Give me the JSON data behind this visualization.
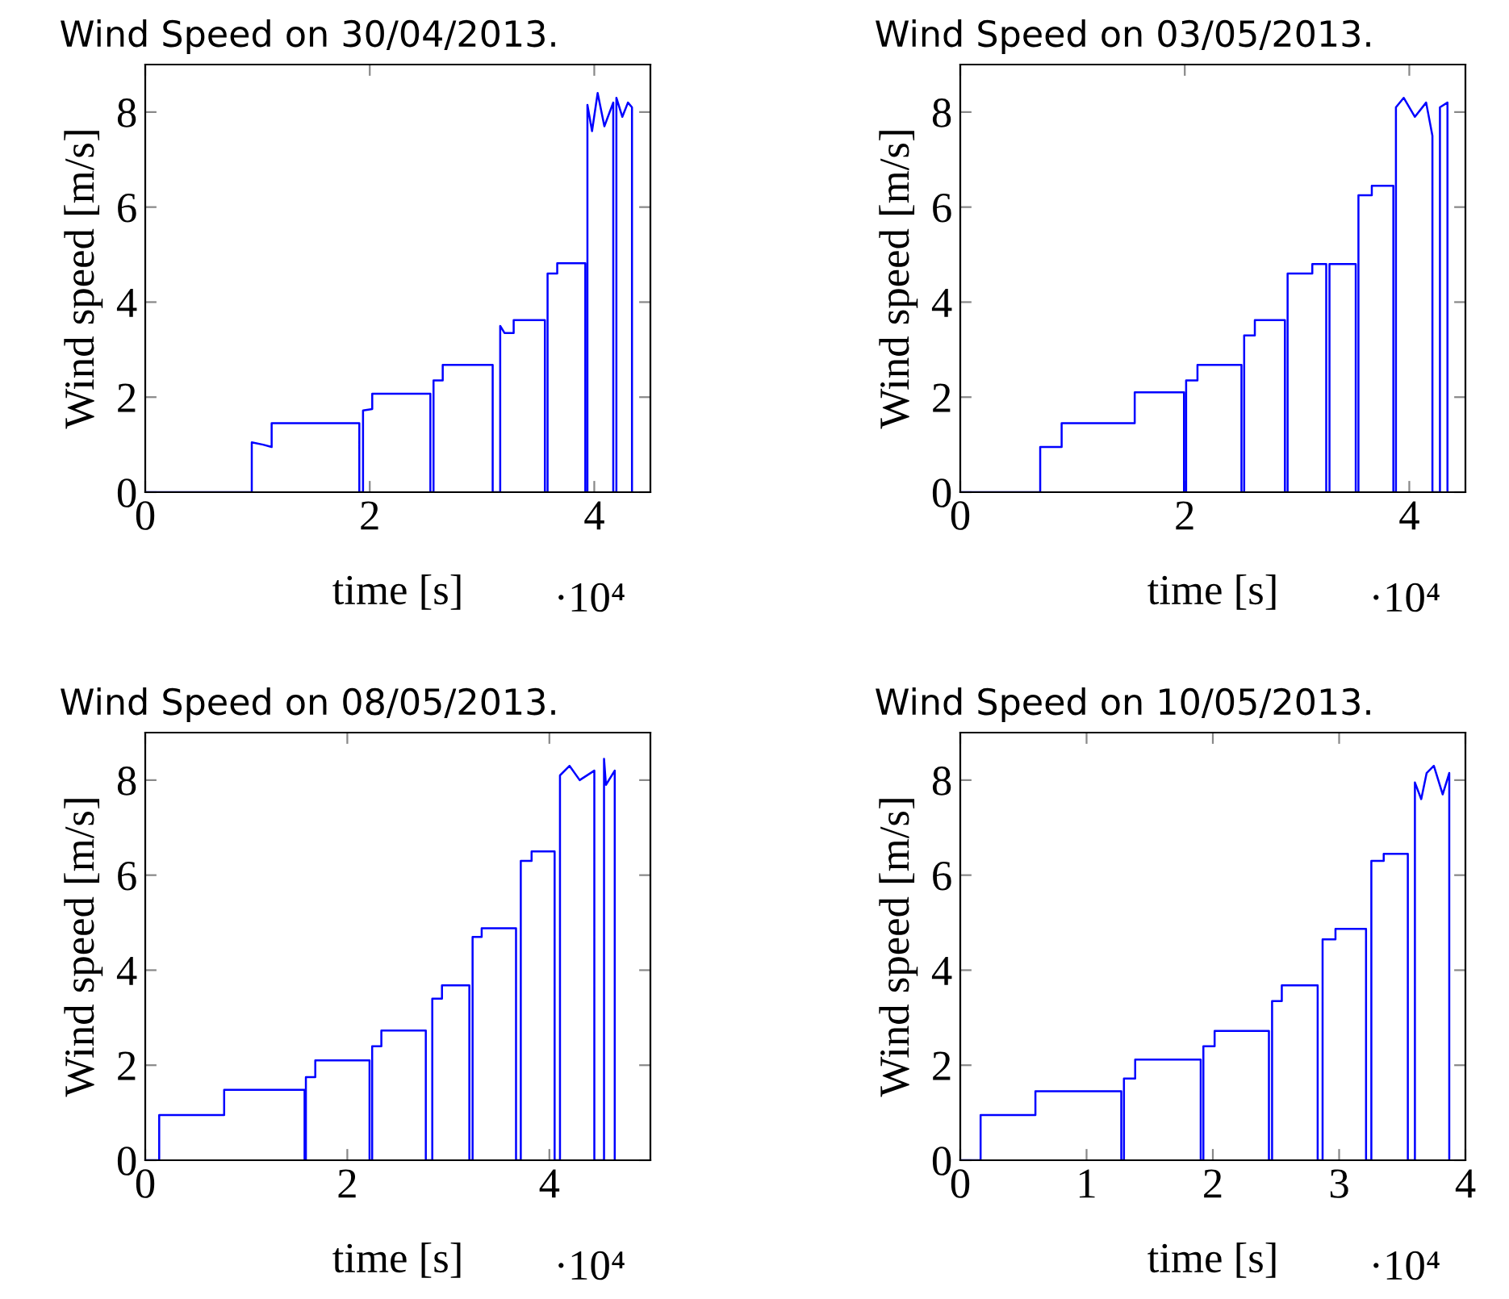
{
  "chart_data": [
    {
      "type": "line",
      "title": "Wind Speed on 30/04/2013.",
      "xlabel": "time [s]",
      "ylabel": "Wind speed [m/s]",
      "annotations": [
        "·10⁴"
      ],
      "xlim": [
        0,
        4.5
      ],
      "ylim": [
        0,
        9
      ],
      "xticks": [
        0,
        2,
        4
      ],
      "yticks": [
        0,
        2,
        4,
        6,
        8
      ],
      "marker": "none",
      "line_style": "solid",
      "series": [
        {
          "color": "#0000ff",
          "x": [
            0,
            0.949,
            0.949,
            1.05,
            1.126,
            1.126,
            1.907,
            1.907,
            1.94,
            1.94,
            2.022,
            2.022,
            2.54,
            2.54,
            2.568,
            2.568,
            2.65,
            2.65,
            3.095,
            3.095,
            3.162,
            3.162,
            3.2,
            3.282,
            3.282,
            3.56,
            3.56,
            3.584,
            3.584,
            3.67,
            3.67,
            3.92,
            3.92,
            3.939,
            3.939,
            3.98,
            4.03,
            4.09,
            4.169,
            4.169,
            4.197,
            4.197,
            4.25,
            4.3,
            4.336,
            4.336
          ],
          "values": [
            0,
            0,
            1.05,
            1.0,
            0.95,
            1.45,
            1.45,
            0,
            0,
            1.72,
            1.75,
            2.07,
            2.07,
            0,
            0,
            2.35,
            2.35,
            2.68,
            2.68,
            0,
            0,
            3.5,
            3.35,
            3.35,
            3.62,
            3.62,
            0,
            0,
            4.6,
            4.6,
            4.82,
            4.82,
            0,
            0,
            8.15,
            7.6,
            8.4,
            7.7,
            8.2,
            0,
            0,
            8.3,
            7.9,
            8.2,
            8.1,
            0
          ]
        }
      ]
    },
    {
      "type": "line",
      "title": "Wind Speed on 03/05/2013.",
      "xlabel": "time [s]",
      "ylabel": "Wind speed [m/s]",
      "annotations": [
        "·10⁴"
      ],
      "xlim": [
        0,
        4.5
      ],
      "ylim": [
        0,
        9
      ],
      "xticks": [
        0,
        2,
        4
      ],
      "yticks": [
        0,
        2,
        4,
        6,
        8
      ],
      "marker": "none",
      "line_style": "solid",
      "series": [
        {
          "color": "#0000ff",
          "x": [
            0,
            0.712,
            0.712,
            0.903,
            0.903,
            1.554,
            1.554,
            1.993,
            1.993,
            2.012,
            2.012,
            2.113,
            2.113,
            2.505,
            2.505,
            2.529,
            2.529,
            2.624,
            2.624,
            2.892,
            2.892,
            2.916,
            2.916,
            3.136,
            3.136,
            3.26,
            3.26,
            3.289,
            3.289,
            3.523,
            3.523,
            3.547,
            3.547,
            3.666,
            3.666,
            3.858,
            3.858,
            3.881,
            3.881,
            3.95,
            4.05,
            4.15,
            4.206,
            4.206,
            4.273,
            4.273,
            4.34,
            4.34
          ],
          "values": [
            0,
            0,
            0.95,
            0.95,
            1.45,
            1.45,
            2.1,
            2.1,
            0,
            0,
            2.35,
            2.35,
            2.68,
            2.68,
            0,
            0,
            3.3,
            3.3,
            3.62,
            3.62,
            0,
            0,
            4.6,
            4.6,
            4.8,
            4.8,
            0,
            0,
            4.8,
            4.8,
            0,
            0,
            6.25,
            6.25,
            6.45,
            6.45,
            0,
            0,
            8.1,
            8.3,
            7.9,
            8.2,
            7.5,
            0,
            0,
            8.1,
            8.2,
            0
          ]
        }
      ]
    },
    {
      "type": "line",
      "title": "Wind Speed on 08/05/2013.",
      "xlabel": "time [s]",
      "ylabel": "Wind speed [m/s]",
      "annotations": [
        "·10⁴"
      ],
      "xlim": [
        0,
        5
      ],
      "ylim": [
        0,
        9
      ],
      "xticks": [
        0,
        2,
        4
      ],
      "yticks": [
        0,
        2,
        4,
        6,
        8
      ],
      "marker": "none",
      "line_style": "solid",
      "series": [
        {
          "color": "#0000ff",
          "x": [
            0,
            0.138,
            0.138,
            0.781,
            0.781,
            1.577,
            1.577,
            1.59,
            1.59,
            1.683,
            1.683,
            2.22,
            2.22,
            2.246,
            2.246,
            2.337,
            2.337,
            2.777,
            2.777,
            2.841,
            2.841,
            2.937,
            2.937,
            3.208,
            3.208,
            3.24,
            3.24,
            3.33,
            3.33,
            3.67,
            3.67,
            3.717,
            3.717,
            3.824,
            3.824,
            4.052,
            4.052,
            4.105,
            4.105,
            4.2,
            4.3,
            4.445,
            4.445,
            4.541,
            4.541,
            4.56,
            4.647,
            4.647
          ],
          "values": [
            0,
            0,
            0.95,
            0.95,
            1.48,
            1.48,
            0,
            0,
            1.75,
            1.75,
            2.1,
            2.1,
            0,
            0,
            2.4,
            2.4,
            2.73,
            2.73,
            0,
            0,
            3.4,
            3.4,
            3.68,
            3.68,
            0,
            0,
            4.7,
            4.7,
            4.88,
            4.88,
            0,
            0,
            6.3,
            6.3,
            6.5,
            6.5,
            0,
            0,
            8.1,
            8.3,
            8.0,
            8.2,
            0,
            0,
            8.45,
            7.9,
            8.2,
            0
          ]
        }
      ]
    },
    {
      "type": "line",
      "title": "Wind Speed on 10/05/2013.",
      "xlabel": "time [s]",
      "ylabel": "Wind speed [m/s]",
      "annotations": [
        "·10⁴"
      ],
      "xlim": [
        0,
        4
      ],
      "ylim": [
        0,
        9
      ],
      "xticks": [
        0,
        1,
        2,
        3,
        4
      ],
      "yticks": [
        0,
        2,
        4,
        6,
        8
      ],
      "marker": "none",
      "line_style": "solid",
      "series": [
        {
          "color": "#0000ff",
          "x": [
            0,
            0.161,
            0.161,
            0.595,
            0.595,
            1.275,
            1.275,
            1.296,
            1.296,
            1.385,
            1.385,
            1.904,
            1.904,
            1.925,
            1.925,
            2.014,
            2.014,
            2.444,
            2.444,
            2.469,
            2.469,
            2.546,
            2.546,
            2.83,
            2.83,
            2.869,
            2.869,
            2.971,
            2.971,
            3.213,
            3.213,
            3.255,
            3.255,
            3.353,
            3.353,
            3.544,
            3.544,
            3.6,
            3.6,
            3.65,
            3.693,
            3.75,
            3.82,
            3.872,
            3.872
          ],
          "values": [
            0,
            0,
            0.95,
            0.95,
            1.45,
            1.45,
            0,
            0,
            1.72,
            1.72,
            2.12,
            2.12,
            0,
            0,
            2.4,
            2.4,
            2.72,
            2.72,
            0,
            0,
            3.35,
            3.35,
            3.68,
            3.68,
            0,
            0,
            4.65,
            4.65,
            4.87,
            4.87,
            0,
            0,
            6.3,
            6.3,
            6.45,
            6.45,
            0,
            0,
            7.95,
            7.6,
            8.15,
            8.3,
            7.7,
            8.15,
            0
          ]
        }
      ]
    }
  ]
}
